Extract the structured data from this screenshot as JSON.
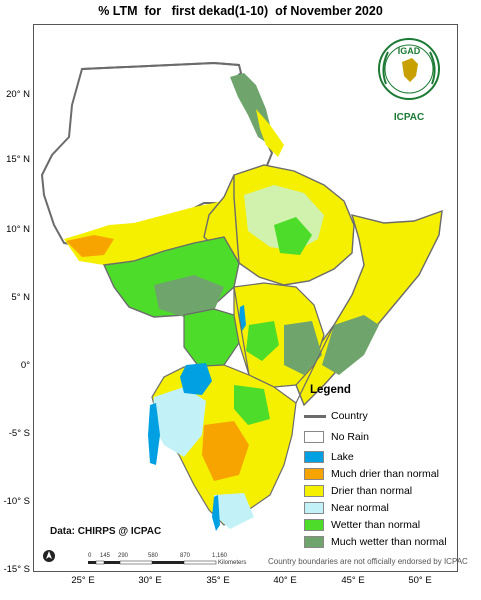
{
  "title": "% LTM  for   first dekad(1-10)  of November 2020",
  "latitude_labels": [
    "20° N",
    "15° N",
    "10° N",
    "5° N",
    "0°",
    "-5° S",
    "-10° S",
    "-15° S"
  ],
  "longitude_labels": [
    "25° E",
    "30° E",
    "35° E",
    "40° E",
    "45° E",
    "50° E"
  ],
  "legend": {
    "title": "Legend",
    "line_item": {
      "label": "Country",
      "color": "#6b6b6b"
    },
    "items": [
      {
        "label": "No Rain",
        "color": "#ffffff"
      },
      {
        "label": "Lake",
        "color": "#00a0e3"
      },
      {
        "label": "Much drier than normal",
        "color": "#f7a400"
      },
      {
        "label": "Drier than normal",
        "color": "#f5f000"
      },
      {
        "label": "Near normal",
        "color": "#c2f2f7"
      },
      {
        "label": "Wetter than normal",
        "color": "#4ddc2a"
      },
      {
        "label": "Much wetter than normal",
        "color": "#6fa46d"
      }
    ]
  },
  "data_source": "Data: CHIRPS @ ICPAC",
  "disclaimer": "Country boundaries are not officially endorsed by ICPAC",
  "scale_bar": {
    "ticks": [
      "0",
      "145",
      "290",
      "580",
      "870",
      "1,160"
    ],
    "unit": "Kilometers"
  },
  "logo": {
    "name": "IGAD",
    "org": "ICPAC"
  }
}
